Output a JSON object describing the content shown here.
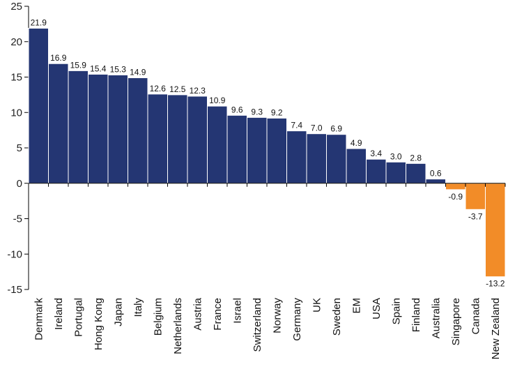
{
  "chart_data": {
    "type": "bar",
    "categories": [
      "Denmark",
      "Ireland",
      "Portugal",
      "Hong Kong",
      "Japan",
      "Italy",
      "Belgium",
      "Netherlands",
      "Austria",
      "France",
      "Israel",
      "Switzerland",
      "Norway",
      "Germany",
      "UK",
      "Sweden",
      "EM",
      "USA",
      "Spain",
      "Finland",
      "Australia",
      "Singapore",
      "Canada",
      "New Zealand"
    ],
    "values": [
      21.9,
      16.9,
      15.9,
      15.4,
      15.3,
      14.9,
      12.6,
      12.5,
      12.3,
      10.9,
      9.6,
      9.3,
      9.2,
      7.4,
      7.0,
      6.9,
      4.9,
      3.4,
      3.0,
      2.8,
      0.6,
      -0.9,
      -3.7,
      -13.2
    ],
    "value_labels": [
      "21.9",
      "16.9",
      "15.9",
      "15.4",
      "15.3",
      "14.9",
      "12.6",
      "12.5",
      "12.3",
      "10.9",
      "9.6",
      "9.3",
      "9.2",
      "7.4",
      "7.0",
      "6.9",
      "4.9",
      "3.4",
      "3.0",
      "2.8",
      "0.6",
      "-0.9",
      "-3.7",
      "-13.2"
    ],
    "y_ticks": [
      25,
      20,
      15,
      10,
      5,
      0,
      -5,
      -10,
      -15
    ],
    "y_tick_labels": [
      "25",
      "20",
      "15",
      "10",
      "5",
      "0",
      "-5",
      "-10",
      "-15"
    ],
    "ylim": [
      -15,
      25
    ],
    "grid": false,
    "legend": "none",
    "colors": {
      "positive": "#243673",
      "negative": "#F28C28"
    }
  }
}
